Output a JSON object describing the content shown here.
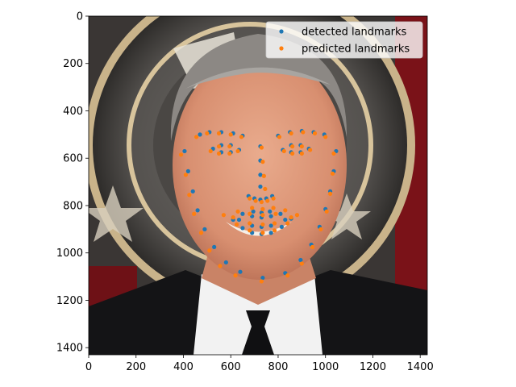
{
  "chart_data": {
    "type": "scatter",
    "title": "",
    "xlabel": "",
    "ylabel": "",
    "xlim": [
      0,
      1430
    ],
    "ylim": [
      1430,
      0
    ],
    "y_inverted": true,
    "background": "photo of a smiling man in a black suit and tie in front of a circular gold-and-black emblem",
    "xticks": [
      {
        "value": 0,
        "label": "0"
      },
      {
        "value": 200,
        "label": "200"
      },
      {
        "value": 400,
        "label": "400"
      },
      {
        "value": 600,
        "label": "600"
      },
      {
        "value": 800,
        "label": "800"
      },
      {
        "value": 1000,
        "label": "1000"
      },
      {
        "value": 1200,
        "label": "1200"
      },
      {
        "value": 1400,
        "label": "1400"
      }
    ],
    "yticks": [
      {
        "value": 0,
        "label": "0"
      },
      {
        "value": 200,
        "label": "200"
      },
      {
        "value": 400,
        "label": "400"
      },
      {
        "value": 600,
        "label": "600"
      },
      {
        "value": 800,
        "label": "800"
      },
      {
        "value": 1000,
        "label": "1000"
      },
      {
        "value": 1200,
        "label": "1200"
      },
      {
        "value": 1400,
        "label": "1400"
      }
    ],
    "legend": {
      "position": "top-right",
      "entries": [
        {
          "label": "detected landmarks",
          "color": "#1f77b4"
        },
        {
          "label": "predicted landmarks",
          "color": "#ff7f0e"
        }
      ]
    },
    "series": [
      {
        "name": "detected landmarks",
        "color": "#1f77b4",
        "points": [
          [
            405,
            570
          ],
          [
            420,
            655
          ],
          [
            440,
            740
          ],
          [
            460,
            820
          ],
          [
            490,
            900
          ],
          [
            530,
            975
          ],
          [
            580,
            1040
          ],
          [
            640,
            1080
          ],
          [
            735,
            1105
          ],
          [
            830,
            1085
          ],
          [
            895,
            1030
          ],
          [
            940,
            965
          ],
          [
            975,
            890
          ],
          [
            1000,
            815
          ],
          [
            1020,
            740
          ],
          [
            1035,
            655
          ],
          [
            1045,
            570
          ],
          [
            470,
            500
          ],
          [
            510,
            490
          ],
          [
            560,
            490
          ],
          [
            610,
            495
          ],
          [
            650,
            505
          ],
          [
            800,
            505
          ],
          [
            850,
            490
          ],
          [
            900,
            485
          ],
          [
            950,
            490
          ],
          [
            995,
            500
          ],
          [
            725,
            550
          ],
          [
            725,
            610
          ],
          [
            725,
            670
          ],
          [
            725,
            720
          ],
          [
            675,
            760
          ],
          [
            700,
            770
          ],
          [
            725,
            775
          ],
          [
            750,
            770
          ],
          [
            775,
            760
          ],
          [
            525,
            560
          ],
          [
            560,
            545
          ],
          [
            600,
            545
          ],
          [
            635,
            565
          ],
          [
            600,
            575
          ],
          [
            560,
            575
          ],
          [
            820,
            565
          ],
          [
            855,
            545
          ],
          [
            895,
            545
          ],
          [
            930,
            560
          ],
          [
            895,
            575
          ],
          [
            855,
            575
          ],
          [
            610,
            860
          ],
          [
            650,
            835
          ],
          [
            695,
            825
          ],
          [
            730,
            830
          ],
          [
            765,
            825
          ],
          [
            810,
            835
          ],
          [
            855,
            855
          ],
          [
            815,
            890
          ],
          [
            770,
            915
          ],
          [
            730,
            920
          ],
          [
            690,
            915
          ],
          [
            650,
            895
          ],
          [
            635,
            860
          ],
          [
            690,
            845
          ],
          [
            730,
            850
          ],
          [
            770,
            845
          ],
          [
            830,
            860
          ],
          [
            770,
            885
          ],
          [
            730,
            890
          ],
          [
            690,
            885
          ]
        ]
      },
      {
        "name": "predicted landmarks",
        "color": "#ff7f0e",
        "points": [
          [
            390,
            585
          ],
          [
            410,
            670
          ],
          [
            425,
            755
          ],
          [
            445,
            835
          ],
          [
            475,
            915
          ],
          [
            510,
            990
          ],
          [
            555,
            1055
          ],
          [
            620,
            1095
          ],
          [
            730,
            1120
          ],
          [
            840,
            1095
          ],
          [
            900,
            1045
          ],
          [
            945,
            975
          ],
          [
            980,
            900
          ],
          [
            1005,
            825
          ],
          [
            1020,
            750
          ],
          [
            1030,
            665
          ],
          [
            1035,
            580
          ],
          [
            455,
            510
          ],
          [
            500,
            495
          ],
          [
            550,
            495
          ],
          [
            600,
            500
          ],
          [
            645,
            510
          ],
          [
            805,
            510
          ],
          [
            855,
            495
          ],
          [
            905,
            490
          ],
          [
            955,
            495
          ],
          [
            1000,
            510
          ],
          [
            730,
            555
          ],
          [
            735,
            615
          ],
          [
            740,
            675
          ],
          [
            745,
            730
          ],
          [
            680,
            770
          ],
          [
            705,
            780
          ],
          [
            730,
            785
          ],
          [
            755,
            780
          ],
          [
            780,
            770
          ],
          [
            515,
            570
          ],
          [
            550,
            550
          ],
          [
            595,
            550
          ],
          [
            630,
            570
          ],
          [
            595,
            580
          ],
          [
            550,
            580
          ],
          [
            825,
            570
          ],
          [
            860,
            550
          ],
          [
            900,
            550
          ],
          [
            935,
            565
          ],
          [
            900,
            580
          ],
          [
            860,
            580
          ],
          [
            570,
            840
          ],
          [
            630,
            825
          ],
          [
            690,
            810
          ],
          [
            735,
            815
          ],
          [
            780,
            810
          ],
          [
            830,
            820
          ],
          [
            880,
            840
          ],
          [
            840,
            875
          ],
          [
            785,
            905
          ],
          [
            735,
            915
          ],
          [
            680,
            905
          ],
          [
            625,
            880
          ],
          [
            610,
            850
          ],
          [
            680,
            835
          ],
          [
            735,
            840
          ],
          [
            790,
            835
          ],
          [
            855,
            850
          ],
          [
            785,
            875
          ],
          [
            735,
            880
          ],
          [
            680,
            875
          ]
        ]
      }
    ]
  }
}
